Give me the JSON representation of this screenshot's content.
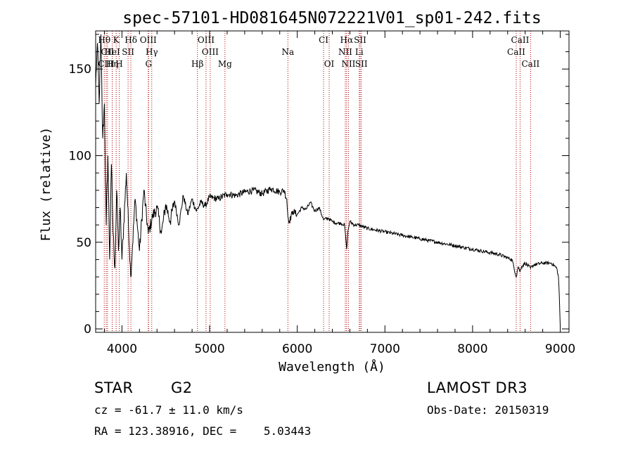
{
  "chart_data": {
    "type": "line",
    "title": "spec-57101-HD081645N072221V01_sp01-242.fits",
    "xlabel": "Wavelength (Å)",
    "ylabel": "Flux (relative)",
    "xlim": [
      3700,
      9100
    ],
    "ylim": [
      -2,
      172
    ],
    "xticks": [
      4000,
      5000,
      6000,
      7000,
      8000,
      9000
    ],
    "yticks": [
      0,
      50,
      100,
      150
    ],
    "series": [
      {
        "name": "flux",
        "x": [
          3700,
          3720,
          3740,
          3760,
          3780,
          3800,
          3820,
          3840,
          3860,
          3880,
          3900,
          3920,
          3940,
          3960,
          3980,
          4000,
          4050,
          4100,
          4150,
          4200,
          4250,
          4300,
          4350,
          4400,
          4450,
          4500,
          4550,
          4600,
          4650,
          4700,
          4750,
          4800,
          4850,
          4900,
          4950,
          5000,
          5100,
          5200,
          5300,
          5400,
          5500,
          5600,
          5700,
          5800,
          5850,
          5880,
          5893,
          5910,
          5950,
          6000,
          6050,
          6100,
          6150,
          6200,
          6250,
          6300,
          6350,
          6400,
          6450,
          6500,
          6540,
          6563,
          6580,
          6600,
          6650,
          6700,
          6800,
          6900,
          7000,
          7100,
          7200,
          7300,
          7400,
          7500,
          7600,
          7700,
          7800,
          7900,
          8000,
          8100,
          8200,
          8300,
          8400,
          8450,
          8498,
          8520,
          8542,
          8560,
          8600,
          8662,
          8700,
          8800,
          8900,
          8960,
          8980,
          8990,
          9000
        ],
        "y": [
          140,
          165,
          130,
          170,
          110,
          130,
          60,
          100,
          40,
          95,
          55,
          35,
          80,
          45,
          70,
          40,
          90,
          30,
          75,
          45,
          80,
          55,
          65,
          70,
          55,
          72,
          62,
          74,
          60,
          77,
          66,
          75,
          68,
          73,
          71,
          76,
          75,
          78,
          77,
          79,
          80,
          78,
          81,
          79,
          80,
          75,
          65,
          62,
          68,
          66,
          70,
          69,
          73,
          68,
          70,
          63,
          64,
          62,
          61,
          61,
          60,
          46,
          57,
          62,
          60,
          60,
          58,
          57,
          56,
          55,
          54,
          53,
          52,
          51,
          50,
          49,
          48,
          47,
          46,
          45,
          44,
          43,
          41,
          40,
          30,
          36,
          33,
          36,
          38,
          35,
          37,
          38,
          38,
          35,
          30,
          18,
          2
        ]
      }
    ],
    "spectral_lines": [
      {
        "label": "Hθ",
        "wavelength": 3798,
        "row": 0
      },
      {
        "label": "CII",
        "wavelength": 3835,
        "row": 1
      },
      {
        "label": "CIII",
        "wavelength": 3820,
        "row": 2
      },
      {
        "label": "K",
        "wavelength": 3934,
        "row": 0
      },
      {
        "label": "HeI",
        "wavelength": 3889,
        "row": 1
      },
      {
        "label": "Hη",
        "wavelength": 3889,
        "row": 2
      },
      {
        "label": "H",
        "wavelength": 3969,
        "row": 2
      },
      {
        "label": "SII",
        "wavelength": 4070,
        "row": 1
      },
      {
        "label": "Hδ",
        "wavelength": 4102,
        "row": 0
      },
      {
        "label": "OIII",
        "wavelength": 4300,
        "row": 0
      },
      {
        "label": "Hγ",
        "wavelength": 4340,
        "row": 1
      },
      {
        "label": "G",
        "wavelength": 4304,
        "row": 2
      },
      {
        "label": "Hβ",
        "wavelength": 4861,
        "row": 2
      },
      {
        "label": "OIII",
        "wavelength": 4959,
        "row": 0
      },
      {
        "label": "OIII",
        "wavelength": 5007,
        "row": 1
      },
      {
        "label": "Mg",
        "wavelength": 5175,
        "row": 2
      },
      {
        "label": "Na",
        "wavelength": 5893,
        "row": 1
      },
      {
        "label": "CI",
        "wavelength": 6300,
        "row": 0
      },
      {
        "label": "OI",
        "wavelength": 6364,
        "row": 2
      },
      {
        "label": "Hα",
        "wavelength": 6563,
        "row": 0
      },
      {
        "label": "NII",
        "wavelength": 6548,
        "row": 1
      },
      {
        "label": "NII",
        "wavelength": 6584,
        "row": 2
      },
      {
        "label": "SII",
        "wavelength": 6717,
        "row": 0
      },
      {
        "label": "Li",
        "wavelength": 6707,
        "row": 1
      },
      {
        "label": "SII",
        "wavelength": 6731,
        "row": 2
      },
      {
        "label": "CaII",
        "wavelength": 8498,
        "row": 1
      },
      {
        "label": "CaII",
        "wavelength": 8542,
        "row": 0
      },
      {
        "label": "CaII",
        "wavelength": 8662,
        "row": 2
      }
    ]
  },
  "info": {
    "class_label": "STAR",
    "subclass_label": "G2",
    "survey": "LAMOST DR3",
    "cz": "cz = -61.7 ± 11.0 km/s",
    "obs_date": "Obs-Date: 20150319",
    "coords": "RA = 123.38916, DEC =    5.03443"
  }
}
